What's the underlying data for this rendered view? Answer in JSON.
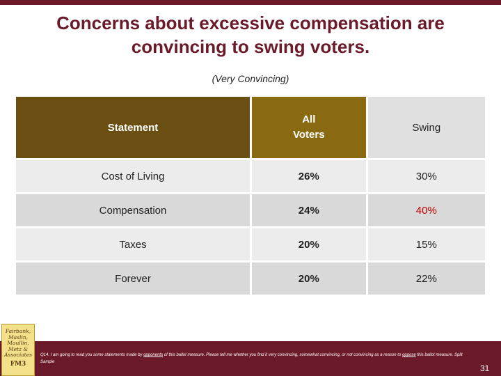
{
  "title": "Concerns about excessive compensation are convincing to swing voters.",
  "subtitle": "(Very Convincing)",
  "table": {
    "headers": {
      "statement": "Statement",
      "all_line1": "All",
      "all_line2": "Voters",
      "swing": "Swing"
    },
    "rows": [
      {
        "statement": "Cost of Living",
        "all": "26%",
        "swing": "30%"
      },
      {
        "statement": "Compensation",
        "all": "24%",
        "swing": "40%"
      },
      {
        "statement": "Taxes",
        "all": "20%",
        "swing": "15%"
      },
      {
        "statement": "Forever",
        "all": "20%",
        "swing": "22%"
      }
    ],
    "highlight_color": "#c00000"
  },
  "logo": {
    "lines": [
      "Fairbank,",
      "Maslin,",
      "Maullin,",
      "Metz &",
      "Associates"
    ],
    "mark": "FM3"
  },
  "footnote": {
    "part1": "Q14. I am going to read you some statements made by ",
    "u1": "opponents",
    "part2": " of this ballot measure. Please tell me whether you find it very convincing, somewhat convincing, or not convincing as a reason to ",
    "u2": "oppose",
    "part3": " this ballot measure. Split Sample"
  },
  "page_number": "31",
  "colors": {
    "brand": "#6b1a2a",
    "header_statement": "#6b4f12",
    "header_all": "#8a6a10"
  }
}
